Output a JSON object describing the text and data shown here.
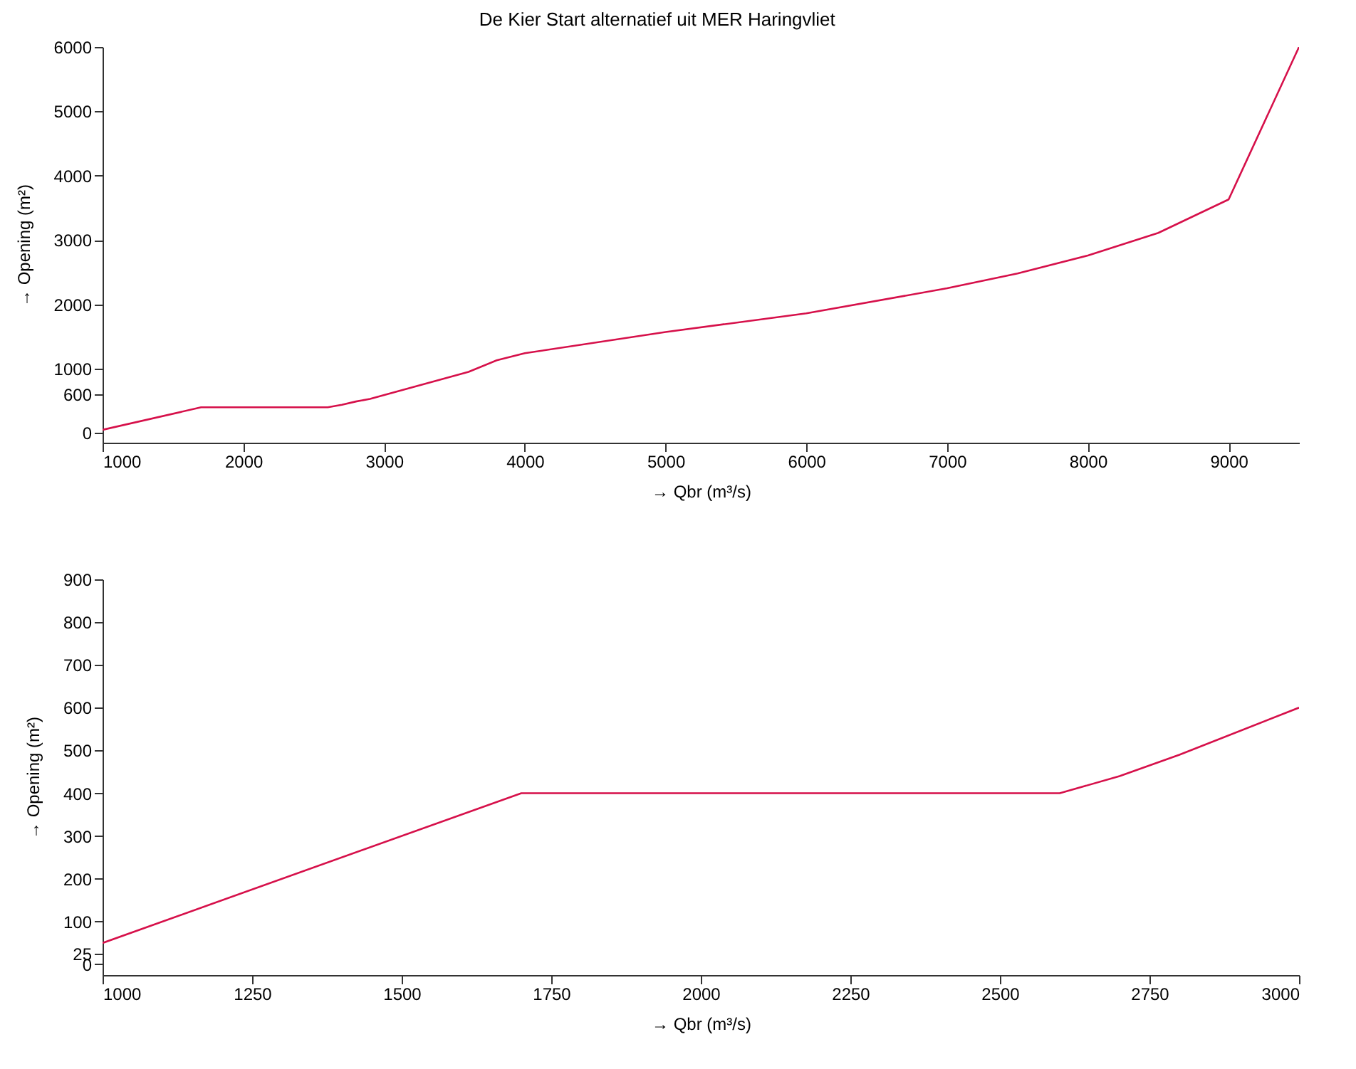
{
  "chart_data": [
    {
      "type": "line",
      "title": "De Kier Start alternatief uit MER Haringvliet",
      "xlabel": "→ Qbr (m³/s)",
      "ylabel": "→ Opening (m²)",
      "x": [
        1000,
        1700,
        2600,
        2700,
        2800,
        2900,
        3600,
        3800,
        4000,
        5000,
        6000,
        7000,
        7500,
        8000,
        8500,
        9000,
        9500
      ],
      "series": [
        {
          "color": "#d6104a",
          "values": [
            50,
            400,
            400,
            440,
            490,
            530,
            950,
            1130,
            1240,
            1570,
            1860,
            2250,
            2480,
            2760,
            3110,
            3630,
            6000
          ]
        }
      ],
      "xlim": [
        1000,
        9500
      ],
      "xticks": [
        1000,
        2000,
        3000,
        4000,
        5000,
        6000,
        7000,
        8000,
        9000
      ],
      "ylim": [
        -150,
        6000
      ],
      "yticks": [
        0,
        600,
        1000,
        2000,
        3000,
        4000,
        5000,
        6000
      ],
      "grid": false
    },
    {
      "type": "line",
      "xlabel": "→ Qbr (m³/s)",
      "ylabel": "→ Opening (m²)",
      "x": [
        1000,
        1700,
        2600,
        2700,
        2800,
        3000
      ],
      "series": [
        {
          "color": "#d6104a",
          "values": [
            50,
            400,
            400,
            440,
            490,
            600
          ]
        }
      ],
      "xlim": [
        1000,
        3000
      ],
      "xticks": [
        1000,
        1250,
        1500,
        1750,
        2000,
        2250,
        2500,
        2750,
        3000
      ],
      "ylim": [
        -25,
        900
      ],
      "yticks": [
        0,
        25,
        100,
        200,
        300,
        400,
        500,
        600,
        700,
        800,
        900
      ],
      "grid": false
    }
  ]
}
